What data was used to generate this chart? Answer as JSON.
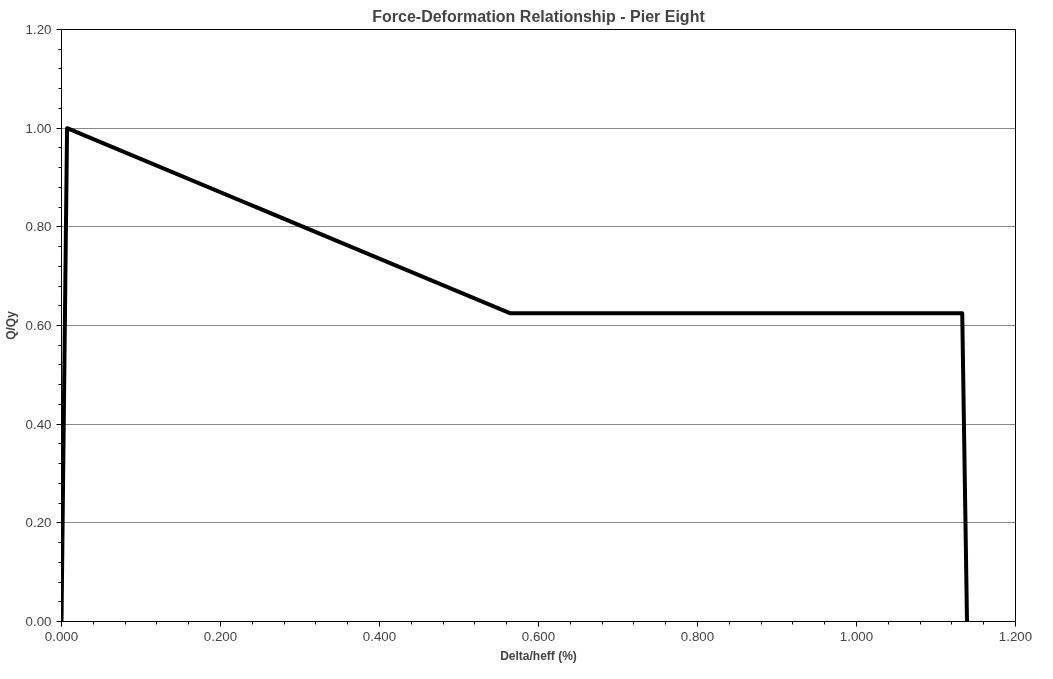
{
  "chart_data": {
    "type": "line",
    "title": "Force-Deformation Relationship - Pier Eight",
    "xlabel": "Delta/heff (%)",
    "ylabel": "Q/Qy",
    "series": [
      {
        "color": "#000000",
        "x": [
          0.0,
          0.007,
          0.564,
          1.133,
          1.139
        ],
        "values": [
          0.0,
          1.0,
          0.625,
          0.625,
          0.0
        ]
      }
    ],
    "xlim": [
      0,
      1.2
    ],
    "xticks": [
      {
        "value": 0,
        "label": "0.000"
      },
      {
        "value": 0.2,
        "label": "0.200"
      },
      {
        "value": 0.4,
        "label": "0.400"
      },
      {
        "value": 0.6,
        "label": "0.600"
      },
      {
        "value": 0.8,
        "label": "0.800"
      },
      {
        "value": 1.0,
        "label": "1.000"
      },
      {
        "value": 1.2,
        "label": "1.200"
      }
    ],
    "ylim": [
      0,
      1.2
    ],
    "yticks": [
      {
        "value": 0,
        "label": "0.00"
      },
      {
        "value": 0.2,
        "label": "0.20"
      },
      {
        "value": 0.4,
        "label": "0.40"
      },
      {
        "value": 0.6,
        "label": "0.60"
      },
      {
        "value": 0.8,
        "label": "0.80"
      },
      {
        "value": 1.0,
        "label": "1.00"
      },
      {
        "value": 1.2,
        "label": "1.20"
      }
    ],
    "grid": "y",
    "marker": "none",
    "line_style": "solid"
  }
}
